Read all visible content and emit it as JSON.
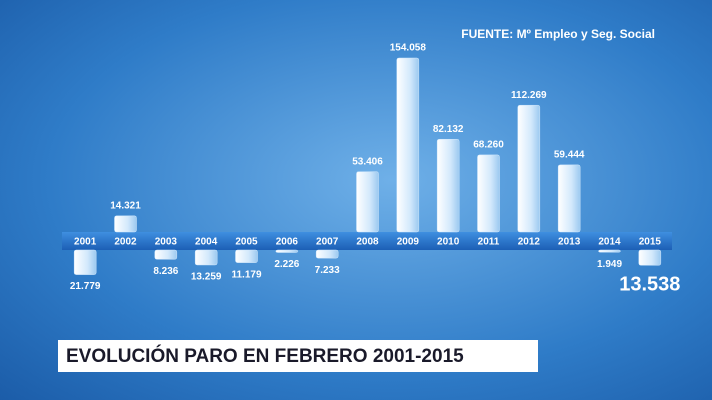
{
  "chart_data": {
    "type": "bar",
    "title": "EVOLUCIÓN PARO EN FEBRERO 2001-2015",
    "source": "FUENTE: Mº Empleo y Seg. Social",
    "categories": [
      "2001",
      "2002",
      "2003",
      "2004",
      "2005",
      "2006",
      "2007",
      "2008",
      "2009",
      "2010",
      "2011",
      "2012",
      "2013",
      "2014",
      "2015"
    ],
    "values": [
      -21779,
      14321,
      -8236,
      -13259,
      -11179,
      -2226,
      -7233,
      53406,
      154058,
      82132,
      68260,
      112269,
      59444,
      -1949,
      -13538
    ],
    "value_labels": [
      "21.779",
      "14.321",
      "8.236",
      "13.259",
      "11.179",
      "2.226",
      "7.233",
      "53.406",
      "154.058",
      "82.132",
      "68.260",
      "112.269",
      "59.444",
      "1.949",
      "13.538"
    ],
    "color": "#cfe6fb"
  }
}
